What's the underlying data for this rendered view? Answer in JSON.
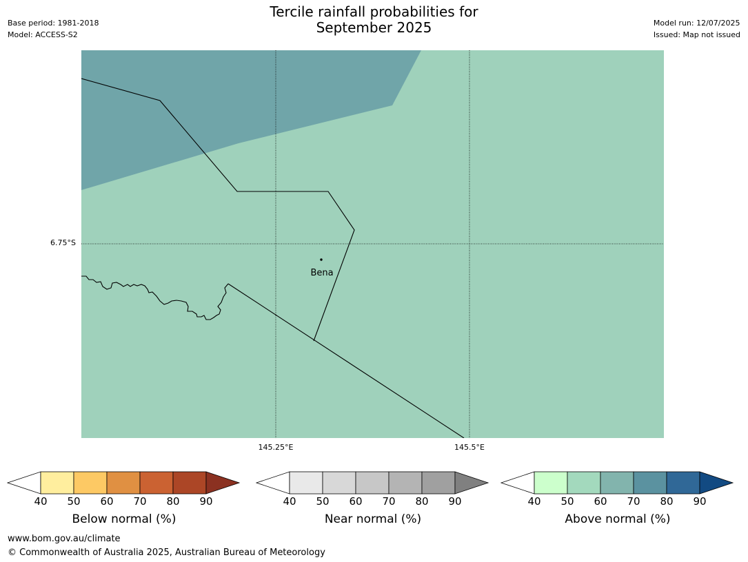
{
  "header": {
    "title_line1": "Tercile rainfall probabilities for",
    "title_line2": "September 2025",
    "base_period": "Base period: 1981-2018",
    "model": "Model: ACCESS-S2",
    "model_run": "Model run: 12/07/2025",
    "issued": "Issued: Map not issued"
  },
  "map": {
    "lat_label": "6.75°S",
    "lon_labels": [
      "145.25°E",
      "145.5°E"
    ],
    "place_name": "Bena",
    "colors": {
      "near_normal_60": "#9fd1bb",
      "near_normal_70": "#70a5a9"
    }
  },
  "colorbars": [
    {
      "label": "Below normal (%)",
      "ticks": [
        "40",
        "50",
        "60",
        "70",
        "80",
        "90"
      ],
      "colors": [
        "#ffee9e",
        "#fdc964",
        "#e09042",
        "#cb6232",
        "#ac4626"
      ],
      "over_color": "#8b3121"
    },
    {
      "label": "Near normal (%)",
      "ticks": [
        "40",
        "50",
        "60",
        "70",
        "80",
        "90"
      ],
      "colors": [
        "#e9e9e9",
        "#d8d8d8",
        "#c7c7c7",
        "#b4b4b4",
        "#a0a0a0"
      ],
      "over_color": "#808080"
    },
    {
      "label": "Above normal (%)",
      "ticks": [
        "40",
        "50",
        "60",
        "70",
        "80",
        "90"
      ],
      "colors": [
        "#ccffcc",
        "#a3d9bd",
        "#82b4ad",
        "#5b92a0",
        "#306897"
      ],
      "over_color": "#124a82"
    }
  ],
  "footer": {
    "url": "www.bom.gov.au/climate",
    "copyright": "© Commonwealth of Australia 2025, Australian Bureau of Meteorology"
  }
}
